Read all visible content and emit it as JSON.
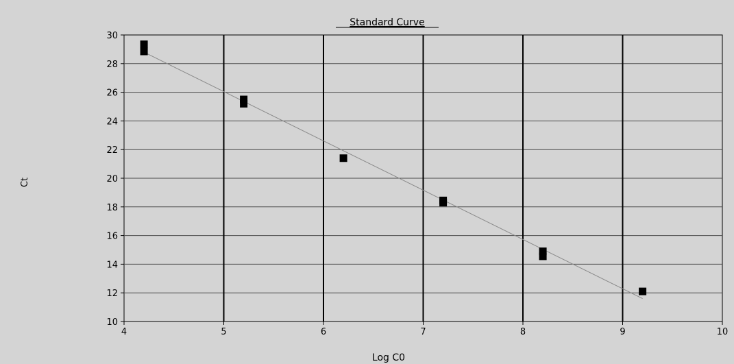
{
  "chart_data": {
    "type": "scatter",
    "title": "Standard Curve",
    "xlabel": "Log C0",
    "ylabel": "Ct",
    "xlim": [
      4,
      10
    ],
    "ylim": [
      10,
      30
    ],
    "xticks": [
      "4",
      "5",
      "6",
      "7",
      "8",
      "9",
      "10"
    ],
    "yticks": [
      "10",
      "12",
      "14",
      "16",
      "18",
      "20",
      "22",
      "24",
      "26",
      "28",
      "30"
    ],
    "grid": true,
    "points": [
      {
        "x": 4.2,
        "y": 29.35
      },
      {
        "x": 4.2,
        "y": 28.85
      },
      {
        "x": 5.2,
        "y": 25.5
      },
      {
        "x": 5.2,
        "y": 25.2
      },
      {
        "x": 6.2,
        "y": 21.4
      },
      {
        "x": 7.2,
        "y": 18.45
      },
      {
        "x": 7.2,
        "y": 18.3
      },
      {
        "x": 8.2,
        "y": 14.9
      },
      {
        "x": 8.2,
        "y": 14.55
      },
      {
        "x": 9.2,
        "y": 12.1
      }
    ],
    "fit_line": {
      "x": [
        4.2,
        9.2
      ],
      "y": [
        28.8,
        11.6
      ]
    },
    "colors": {
      "plot_bg": "#d4d4d4",
      "grid_minor": "#4a4a4a",
      "grid_major": "#000000",
      "marker": "#000000",
      "fit": "#8a8a8a"
    }
  }
}
